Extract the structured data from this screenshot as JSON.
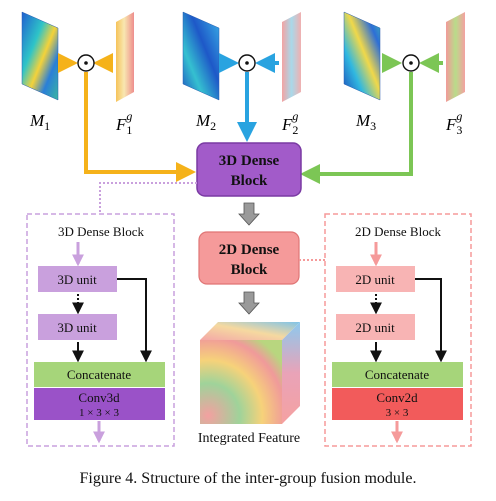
{
  "inputs": [
    {
      "map_label": "M",
      "map_index": "1",
      "feat_label": "F",
      "feat_sub": "1",
      "feat_sup": "g"
    },
    {
      "map_label": "M",
      "map_index": "2",
      "feat_label": "F",
      "feat_sub": "2",
      "feat_sup": "g"
    },
    {
      "map_label": "M",
      "map_index": "3",
      "feat_label": "F",
      "feat_sub": "3",
      "feat_sup": "g"
    }
  ],
  "hadamard_symbol": "⊙",
  "center": {
    "block3d_line1": "3D Dense",
    "block3d_line2": "Block",
    "block2d_line1": "2D Dense",
    "block2d_line2": "Block",
    "output_label": "Integrated Feature"
  },
  "left_panel": {
    "title": "3D Dense Block",
    "unit1": "3D unit",
    "unit2": "3D unit",
    "concat": "Concatenate",
    "conv_line1": "Conv3d",
    "conv_line2": "1 × 3 × 3"
  },
  "right_panel": {
    "title": "2D Dense Block",
    "unit1": "2D unit",
    "unit2": "2D unit",
    "concat": "Concatenate",
    "conv_line1": "Conv2d",
    "conv_line2": "3 × 3"
  },
  "caption": "Figure 4. Structure of the inter-group fusion module.",
  "colors": {
    "orange": "#f5b21a",
    "blue": "#29a3e0",
    "green": "#7cc655",
    "purple": "#a25bc9",
    "purple_light": "#c9a0dd",
    "pink": "#f59a9a",
    "pink_light": "#f8b4b4",
    "concat_green": "#a6d57a",
    "conv_red": "#f25b5b",
    "conv_purple": "#9a52c8"
  }
}
